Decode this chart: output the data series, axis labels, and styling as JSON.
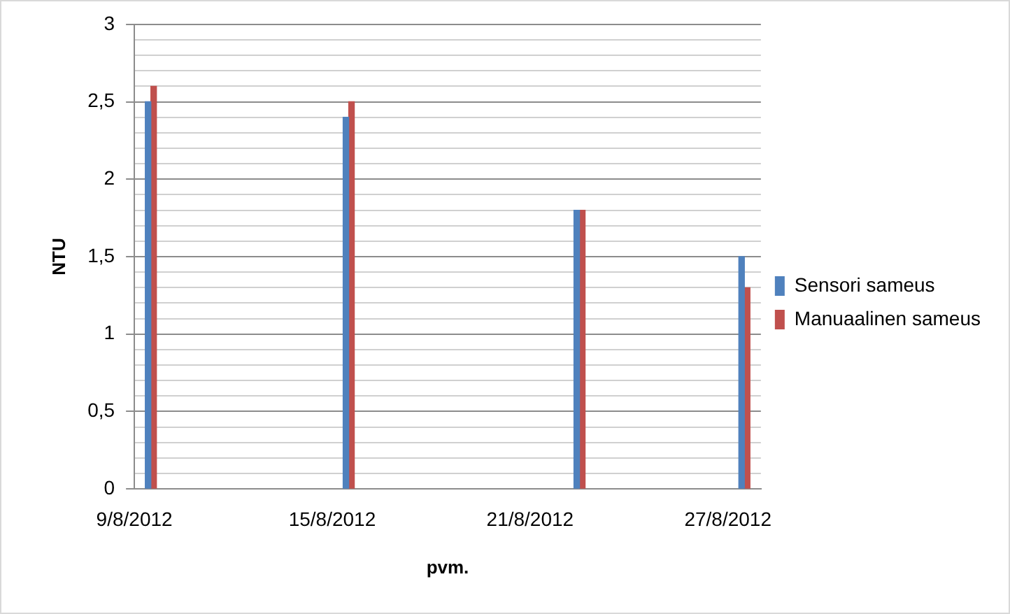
{
  "chart_data": {
    "type": "bar",
    "xlabel": "pvm.",
    "ylabel": "NTU",
    "x": [
      "2012-08-09",
      "2012-08-15",
      "2012-08-22",
      "2012-08-27"
    ],
    "xlim": [
      "2012-08-09",
      "2012-08-28"
    ],
    "xticks": [
      {
        "value": "2012-08-09",
        "label": "9/8/2012"
      },
      {
        "value": "2012-08-15",
        "label": "15/8/2012"
      },
      {
        "value": "2012-08-21",
        "label": "21/8/2012"
      },
      {
        "value": "2012-08-27",
        "label": "27/8/2012"
      }
    ],
    "series": [
      {
        "name": "Sensori sameus",
        "color": "#4f81bd",
        "values": [
          2.5,
          2.4,
          1.8,
          1.5
        ]
      },
      {
        "name": "Manuaalinen sameus",
        "color": "#c0504d",
        "values": [
          2.6,
          2.5,
          1.8,
          1.3
        ]
      }
    ],
    "ylim": [
      0,
      3
    ],
    "yticks": [
      0,
      {
        "value": 0.1,
        "label": null
      },
      {
        "value": 0.2,
        "label": null
      },
      {
        "value": 0.3,
        "label": null
      },
      {
        "value": 0.4,
        "label": null
      },
      {
        "value": 0.5,
        "label": "0,5"
      },
      {
        "value": 0.6,
        "label": null
      },
      {
        "value": 0.7,
        "label": null
      },
      {
        "value": 0.8,
        "label": null
      },
      {
        "value": 0.9,
        "label": null
      },
      1,
      {
        "value": 1.1,
        "label": null
      },
      {
        "value": 1.2,
        "label": null
      },
      {
        "value": 1.3,
        "label": null
      },
      {
        "value": 1.4,
        "label": null
      },
      {
        "value": 1.5,
        "label": "1,5"
      },
      {
        "value": 1.6,
        "label": null
      },
      {
        "value": 1.7,
        "label": null
      },
      {
        "value": 1.8,
        "label": null
      },
      {
        "value": 1.9,
        "label": null
      },
      2,
      {
        "value": 2.1,
        "label": null
      },
      {
        "value": 2.2,
        "label": null
      },
      {
        "value": 2.3,
        "label": null
      },
      {
        "value": 2.4,
        "label": null
      },
      {
        "value": 2.5,
        "label": "2,5"
      },
      {
        "value": 2.6,
        "label": null
      },
      {
        "value": 2.7,
        "label": null
      },
      {
        "value": 2.8,
        "label": null
      },
      {
        "value": 2.9,
        "label": null
      },
      3
    ],
    "grid": "y",
    "legend": "right"
  }
}
